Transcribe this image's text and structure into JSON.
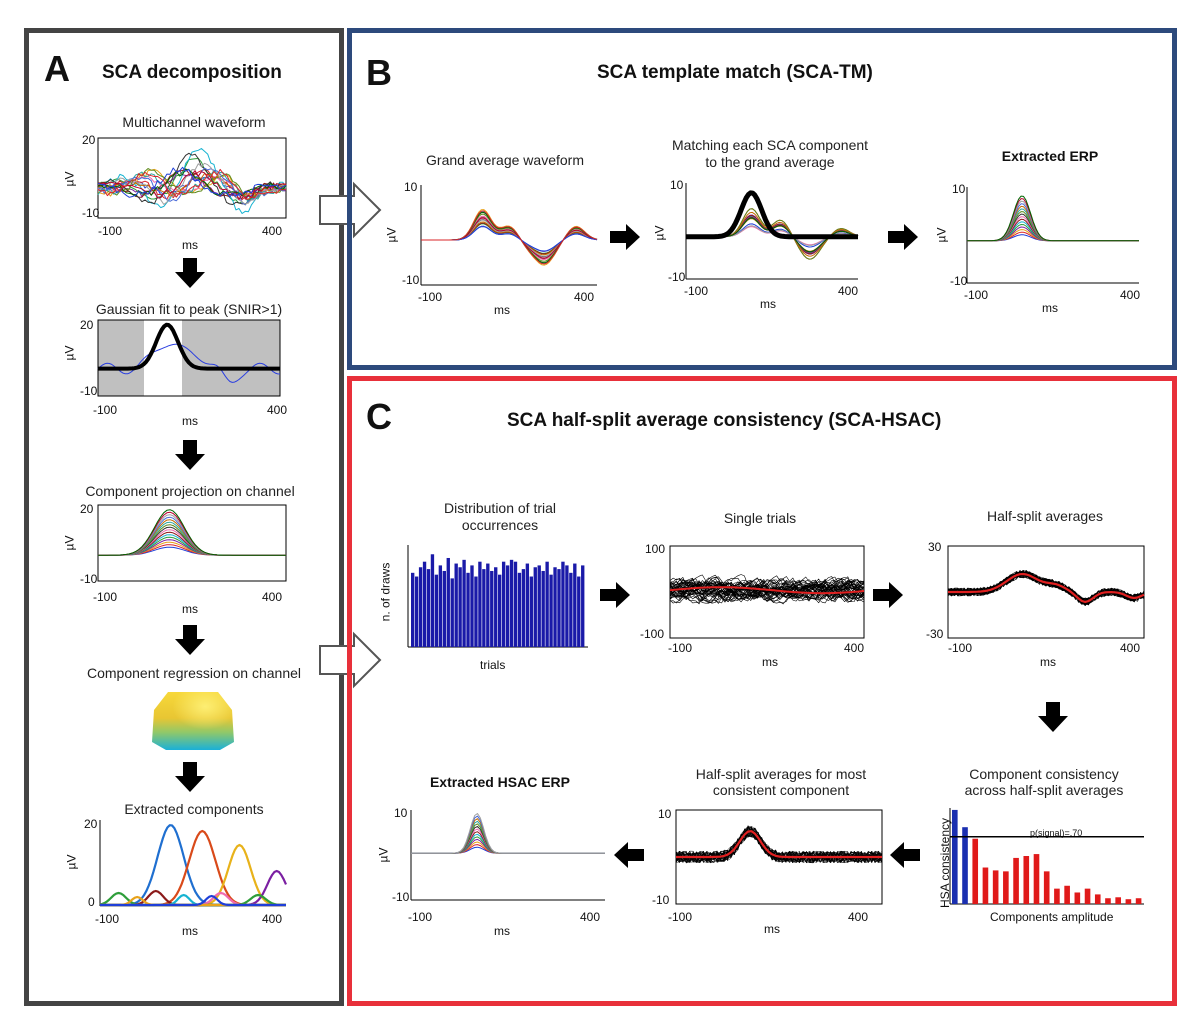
{
  "panels": {
    "a": {
      "letter": "A",
      "title": "SCA decomposition",
      "border_color": "#444444"
    },
    "b": {
      "letter": "B",
      "title": "SCA template match (SCA-TM)",
      "border_color": "#2d4a7c"
    },
    "c": {
      "letter": "C",
      "title": "SCA  half-split average consistency (SCA-HSAC)",
      "border_color": "#e8303a"
    }
  },
  "a_steps": {
    "multichannel": {
      "title": "Multichannel waveform",
      "ymax": "20",
      "ymin": "-10",
      "xmin": "-100",
      "xmax": "400",
      "ylabel": "µV",
      "xlabel": "ms"
    },
    "gaussian": {
      "title": "Gaussian fit to peak (SNIR>1)",
      "ymax": "20",
      "ymin": "-10",
      "xmin": "-100",
      "xmax": "400",
      "ylabel": "µV",
      "xlabel": "ms"
    },
    "projection": {
      "title": "Component projection on channel",
      "ymax": "20",
      "ymin": "-10",
      "xmin": "-100",
      "xmax": "400",
      "ylabel": "µV",
      "xlabel": "ms"
    },
    "regression": {
      "title": "Component regression on channel"
    },
    "extracted": {
      "title": "Extracted components",
      "ymax": "20",
      "ymin": "0",
      "xmin": "-100",
      "xmax": "400",
      "ylabel": "µV",
      "xlabel": "ms"
    }
  },
  "b_steps": {
    "grand": {
      "title": "Grand average waveform",
      "ymax": "10",
      "ymin": "-10",
      "xmin": "-100",
      "xmax": "400",
      "ylabel": "µV",
      "xlabel": "ms"
    },
    "matching": {
      "title_line1": "Matching each SCA component",
      "title_line2": "to the grand average",
      "ymax": "10",
      "ymin": "-10",
      "xmin": "-100",
      "xmax": "400",
      "ylabel": "µV",
      "xlabel": "ms"
    },
    "extracted": {
      "title": "Extracted ERP",
      "ymax": "10",
      "ymin": "-10",
      "xmin": "-100",
      "xmax": "400",
      "ylabel": "µV",
      "xlabel": "ms"
    }
  },
  "c_steps": {
    "distribution": {
      "title_line1": "Distribution of trial",
      "title_line2": "occurrences",
      "ylabel": "n. of draws",
      "xlabel": "trials"
    },
    "single": {
      "title": "Single trials",
      "ymax": "100",
      "ymin": "-100",
      "xmin": "-100",
      "xmax": "400",
      "xlabel": "ms"
    },
    "halfsplit": {
      "title": "Half-split averages",
      "ymax": "30",
      "ymin": "-30",
      "xmin": "-100",
      "xmax": "400",
      "xlabel": "ms"
    },
    "consistency": {
      "title_line1": "Component consistency",
      "title_line2": "across half-split averages",
      "ylabel": "HSA consistency",
      "xlabel": "Components amplitude",
      "threshold_label": "p(signal)=.70"
    },
    "most": {
      "title_line1": "Half-split averages for most",
      "title_line2": "consistent component",
      "ymax": "10",
      "ymin": "-10",
      "xmin": "-100",
      "xmax": "400",
      "xlabel": "ms"
    },
    "hsac": {
      "title": "Extracted HSAC ERP",
      "ymax": "10",
      "ymin": "-10",
      "xmin": "-100",
      "xmax": "400",
      "ylabel": "µV",
      "xlabel": "ms"
    }
  },
  "chart_data": [
    {
      "type": "bar",
      "title": "Distribution of trial occurrences",
      "ylabel": "n. of draws",
      "xlabel": "trials",
      "values": [
        40,
        38,
        43,
        46,
        42,
        50,
        39,
        44,
        41,
        48,
        37,
        45,
        43,
        47,
        40,
        44,
        38,
        46,
        42,
        45,
        41,
        43,
        39,
        46,
        44,
        47,
        46,
        40,
        42,
        45,
        38,
        43,
        44,
        41,
        46,
        39,
        43,
        42,
        46,
        44,
        40,
        45,
        38,
        44
      ]
    },
    {
      "type": "bar",
      "title": "Component consistency across half-split averages",
      "ylabel": "HSA consistency",
      "xlabel": "Components amplitude",
      "threshold": 0.7,
      "threshold_label": "p(signal)=.70",
      "values": [
        0.98,
        0.8,
        0.68,
        0.38,
        0.35,
        0.34,
        0.48,
        0.5,
        0.52,
        0.34,
        0.16,
        0.19,
        0.12,
        0.16,
        0.1,
        0.06,
        0.07,
        0.05,
        0.06
      ],
      "colors": [
        "#1a2fb0",
        "#1a2fb0",
        "#e01a1a",
        "#e01a1a",
        "#e01a1a",
        "#e01a1a",
        "#e01a1a",
        "#e01a1a",
        "#e01a1a",
        "#e01a1a",
        "#e01a1a",
        "#e01a1a",
        "#e01a1a",
        "#e01a1a",
        "#e01a1a",
        "#e01a1a",
        "#e01a1a",
        "#e01a1a",
        "#e01a1a"
      ]
    }
  ],
  "colors": {
    "bar_blue": "#1a1aa8",
    "trial_red": "#e02020",
    "arrow": "#000000"
  }
}
